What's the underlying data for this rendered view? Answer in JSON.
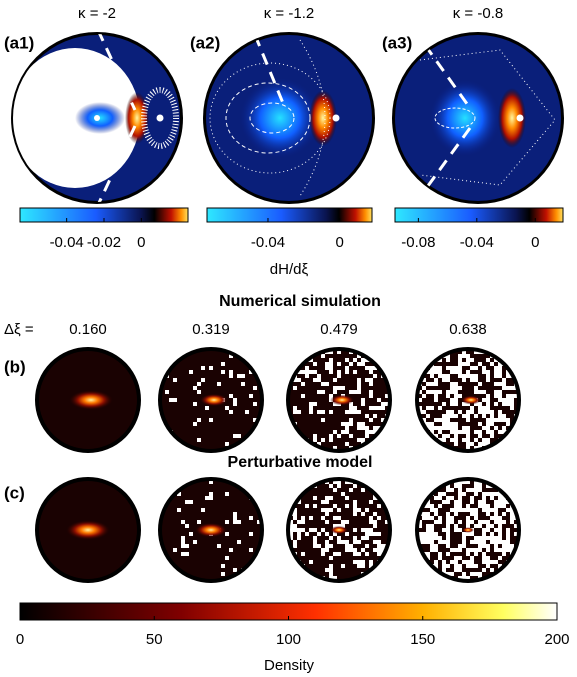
{
  "top_panels": [
    {
      "label": "(a1)",
      "kappa_label": "κ = -2",
      "colorbar": {
        "lim": [
          -0.065,
          0.025
        ],
        "ticks": [
          -0.04,
          -0.02,
          0
        ]
      }
    },
    {
      "label": "(a2)",
      "kappa_label": "κ = -1.2",
      "colorbar": {
        "lim": [
          -0.074,
          0.018
        ],
        "ticks": [
          -0.04,
          0
        ]
      }
    },
    {
      "label": "(a3)",
      "kappa_label": "κ = -0.8",
      "colorbar": {
        "lim": [
          -0.096,
          0.019
        ],
        "ticks": [
          -0.08,
          -0.04,
          0
        ]
      }
    }
  ],
  "colorbar_label": "dH/dξ",
  "sections": [
    {
      "label": "(b)",
      "title": "Numerical simulation"
    },
    {
      "label": "(c)",
      "title": "Perturbative model"
    }
  ],
  "delta_label": "Δξ =",
  "delta_values": [
    "0.160",
    "0.319",
    "0.479",
    "0.638"
  ],
  "density_colorbar": {
    "label": "Density",
    "lim": [
      0,
      200
    ],
    "ticks": [
      0,
      50,
      100,
      150,
      200
    ]
  }
}
